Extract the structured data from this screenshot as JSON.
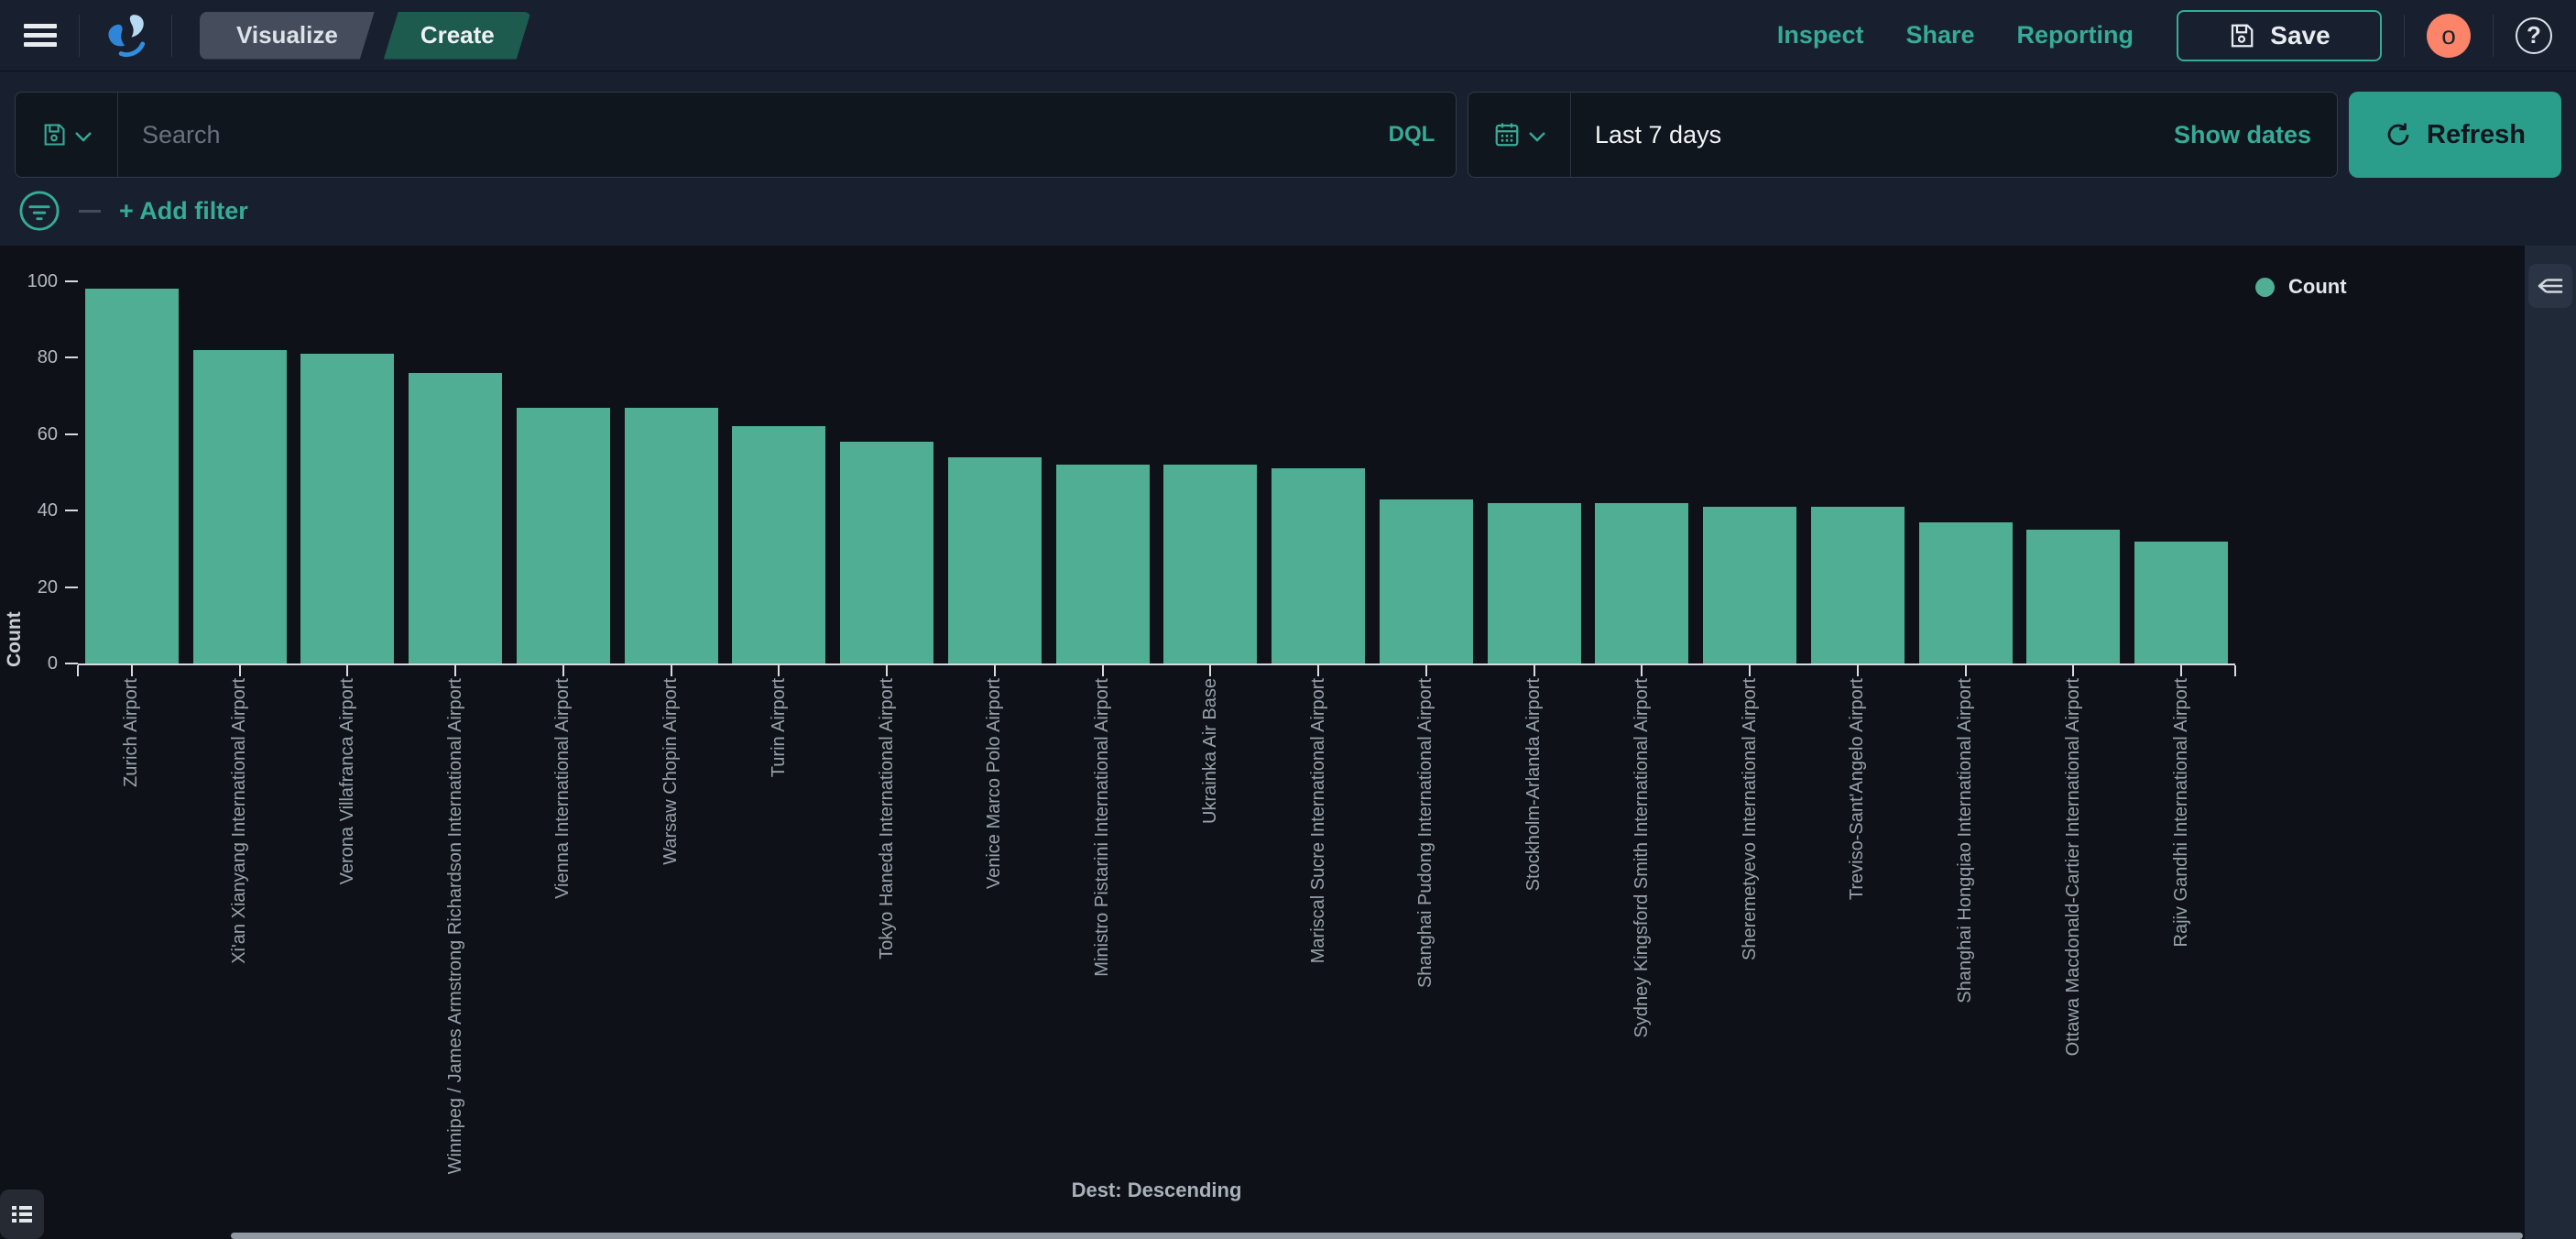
{
  "header": {
    "breadcrumbs": [
      {
        "label": "Visualize"
      },
      {
        "label": "Create"
      }
    ],
    "actions": [
      "Inspect",
      "Share",
      "Reporting"
    ],
    "save_label": "Save",
    "avatar_initial": "o",
    "help_glyph": "?"
  },
  "query_bar": {
    "search_placeholder": "Search",
    "language_label": "DQL",
    "date_value": "Last 7 days",
    "show_dates_label": "Show dates",
    "refresh_label": "Refresh"
  },
  "filter_bar": {
    "add_filter_label": "+ Add filter"
  },
  "chart_data": {
    "type": "bar",
    "title": "",
    "xlabel": "Dest: Descending",
    "ylabel": "Count",
    "legend": [
      {
        "label": "Count",
        "color": "#4fae93"
      }
    ],
    "legend_position": "top-right",
    "grid": false,
    "ylim": [
      0,
      100
    ],
    "yticks": [
      0,
      20,
      40,
      60,
      80,
      100
    ],
    "bar_color": "#4fae93",
    "categories": [
      "Zurich Airport",
      "Xi'an Xianyang International Airport",
      "Verona Villafranca Airport",
      "Winnipeg / James Armstrong Richardson International Airport",
      "Vienna International Airport",
      "Warsaw Chopin Airport",
      "Turin Airport",
      "Tokyo Haneda International Airport",
      "Venice Marco Polo Airport",
      "Ministro Pistarini International Airport",
      "Ukrainka Air Base",
      "Mariscal Sucre International Airport",
      "Shanghai Pudong International Airport",
      "Stockholm-Arlanda Airport",
      "Sydney Kingsford Smith International Airport",
      "Sheremetyevo International Airport",
      "Treviso-Sant'Angelo Airport",
      "Shanghai Hongqiao International Airport",
      "Ottawa Macdonald-Cartier International Airport",
      "Rajiv Gandhi International Airport"
    ],
    "values": [
      98,
      82,
      81,
      76,
      67,
      67,
      62,
      58,
      54,
      52,
      52,
      51,
      43,
      42,
      42,
      41,
      41,
      37,
      35,
      32
    ]
  },
  "colors": {
    "accent_teal": "#36ab97",
    "refresh_button": "#2a9e8a",
    "bar": "#4fae93",
    "avatar": "#fb8469",
    "chart_background": "#0e1218",
    "page_background": "#182030",
    "breadcrumb_active": "#1d5b4e",
    "breadcrumb_inactive": "#454d5c"
  }
}
